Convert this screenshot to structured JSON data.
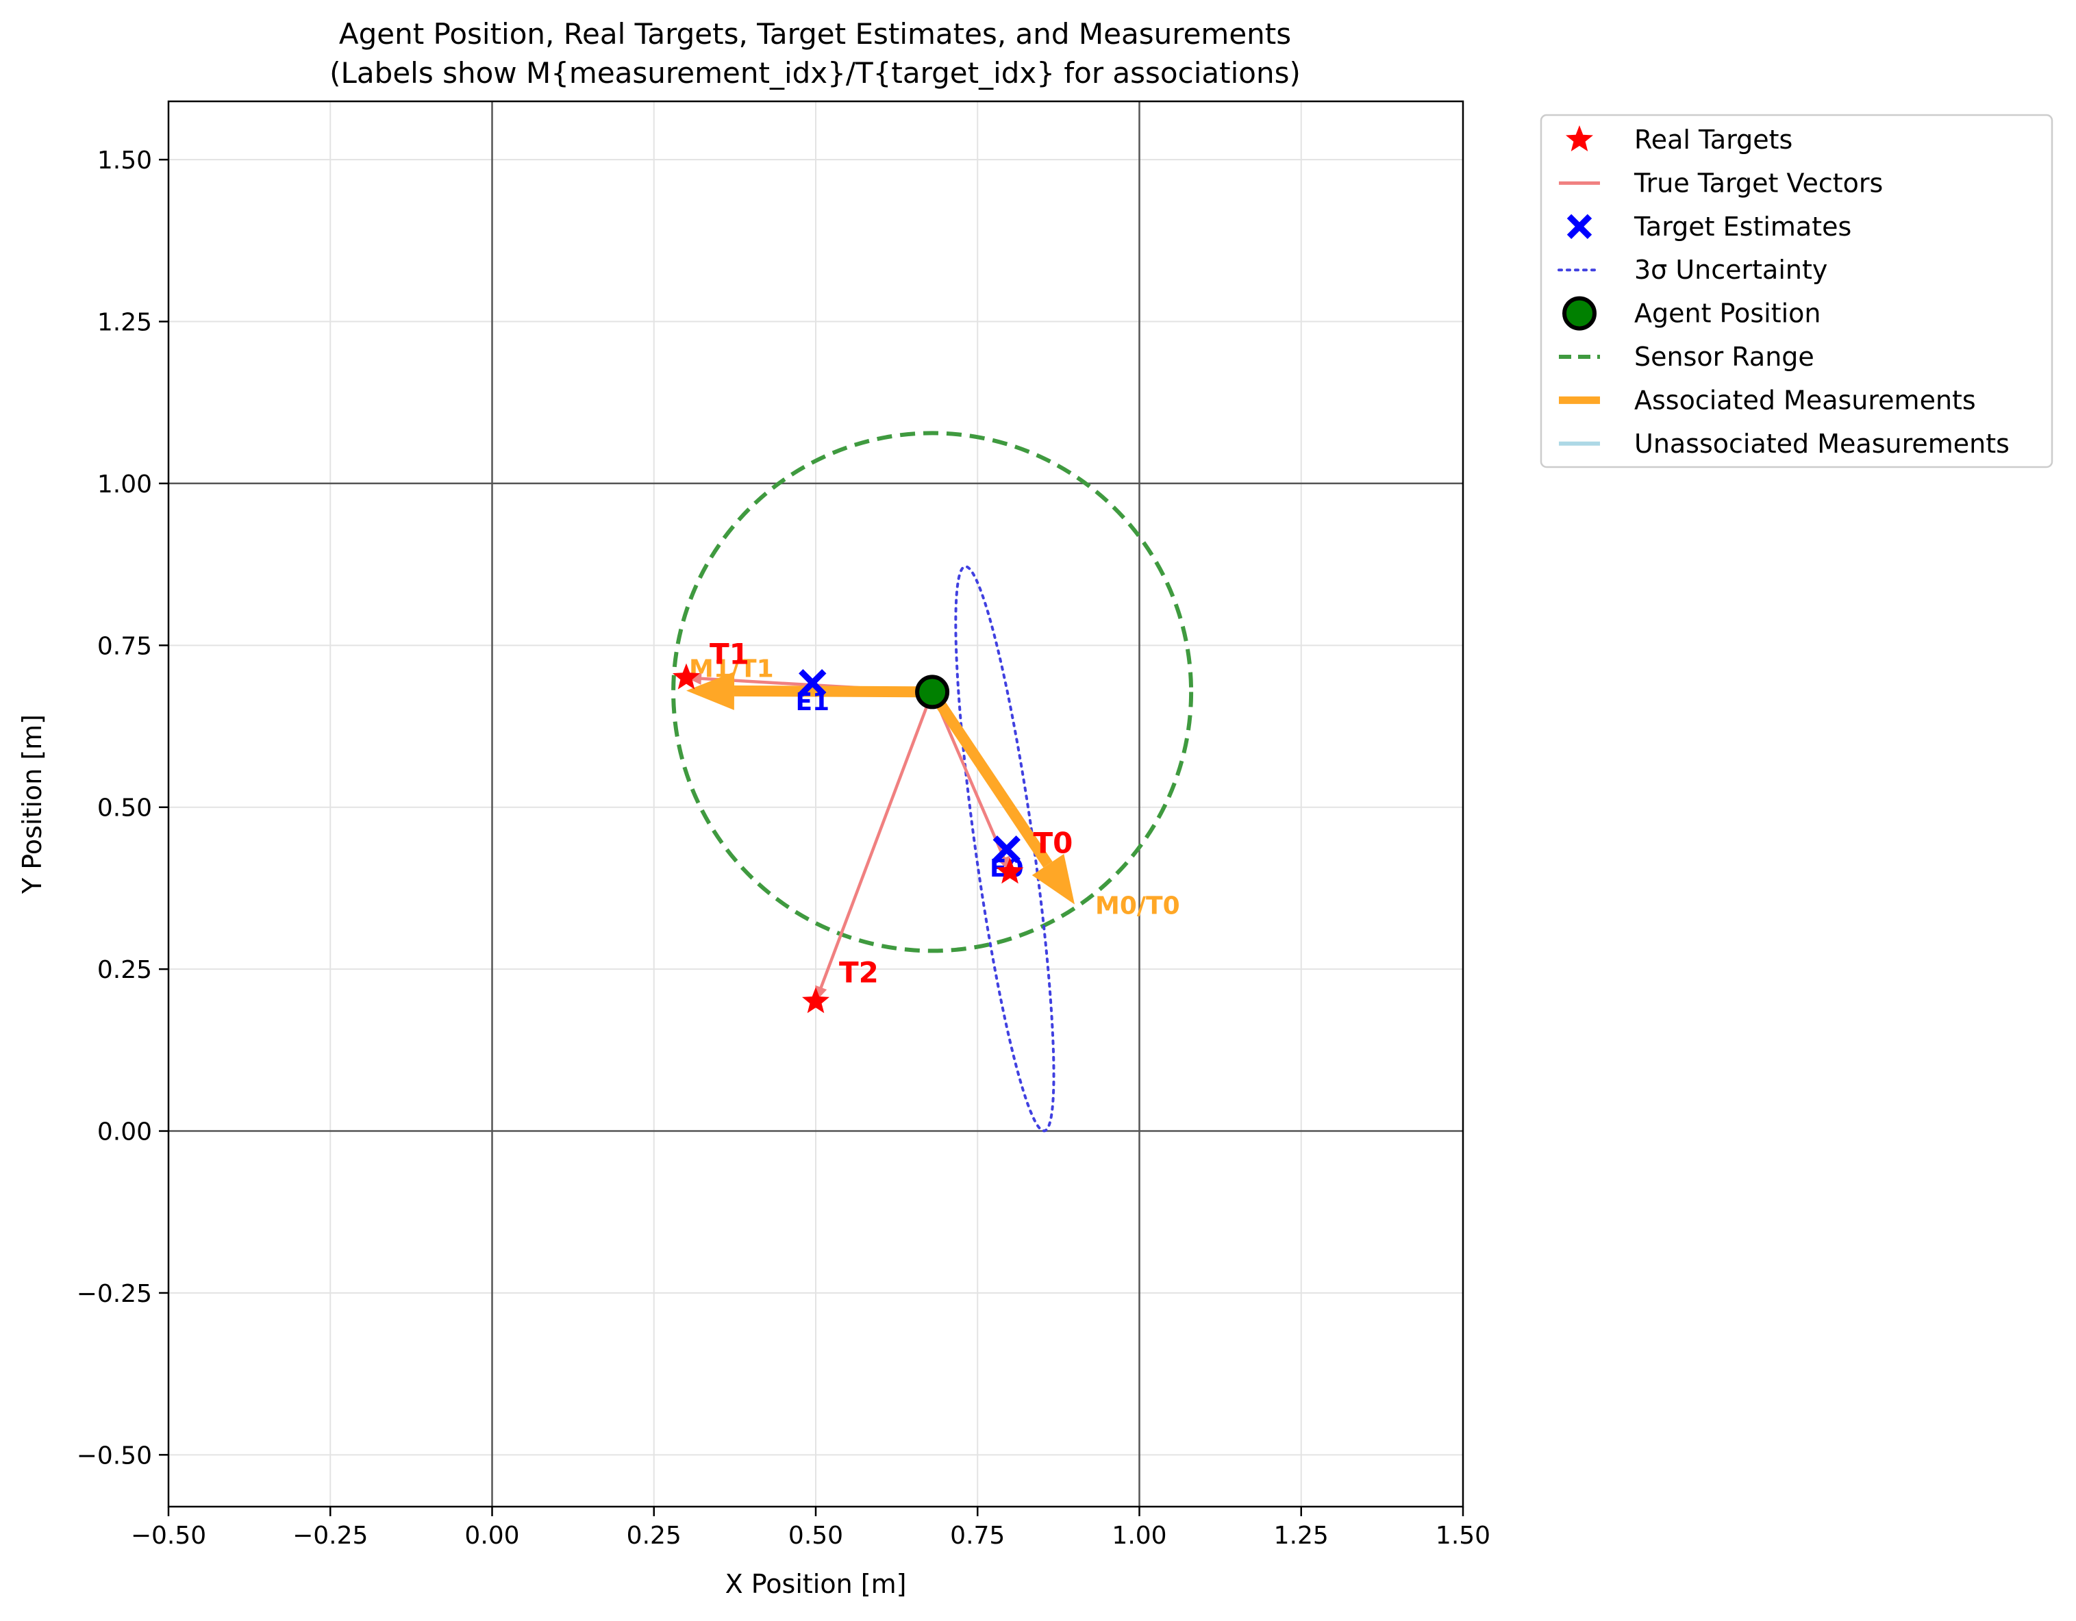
{
  "chart_data": {
    "type": "scatter",
    "title": "Agent Position, Real Targets, Target Estimates, and Measurements",
    "subtitle": "(Labels show M{measurement_idx}/T{target_idx} for associations)",
    "xlabel": "X Position [m]",
    "ylabel": "Y Position [m]",
    "xlim": [
      -0.5,
      1.5
    ],
    "ylim": [
      -0.58,
      1.59
    ],
    "xticks": [
      -0.5,
      -0.25,
      0.0,
      0.25,
      0.5,
      0.75,
      1.0,
      1.25,
      1.5
    ],
    "xtick_labels": [
      "−0.50",
      "−0.25",
      "0.00",
      "0.25",
      "0.50",
      "0.75",
      "1.00",
      "1.25",
      "1.50"
    ],
    "yticks": [
      -0.5,
      -0.25,
      0.0,
      0.25,
      0.5,
      0.75,
      1.0,
      1.25,
      1.5
    ],
    "ytick_labels": [
      "−0.50",
      "−0.25",
      "0.00",
      "0.25",
      "0.50",
      "0.75",
      "1.00",
      "1.25",
      "1.50"
    ],
    "grid": true,
    "reference_lines": {
      "x": [
        0.0,
        1.0
      ],
      "y": [
        0.0,
        1.0
      ]
    },
    "agent": {
      "x": 0.68,
      "y": 0.678
    },
    "sensor_range": {
      "cx": 0.68,
      "cy": 0.678,
      "r": 0.4
    },
    "real_targets": [
      {
        "label": "T0",
        "x": 0.8,
        "y": 0.4
      },
      {
        "label": "T1",
        "x": 0.3,
        "y": 0.7
      },
      {
        "label": "T2",
        "x": 0.5,
        "y": 0.2
      }
    ],
    "target_estimates": [
      {
        "label": "E0",
        "x": 0.795,
        "y": 0.435
      },
      {
        "label": "E1",
        "x": 0.495,
        "y": 0.692
      }
    ],
    "uncertainty_ellipse": {
      "cx": 0.792,
      "cy": 0.436,
      "rx": 0.045,
      "ry": 0.44,
      "angle_deg": 8
    },
    "associated_measurements": [
      {
        "label": "M0/T0",
        "x": 0.9,
        "y": 0.35
      },
      {
        "label": "M1/T1",
        "x": 0.3,
        "y": 0.68
      }
    ],
    "legend": {
      "position": "outside-upper-right",
      "entries": [
        "Real Targets",
        "True Target Vectors",
        "Target Estimates",
        "3σ Uncertainty",
        "Agent Position",
        "Sensor Range",
        "Associated Measurements",
        "Unassociated Measurements"
      ]
    },
    "colors": {
      "real_target": "#ff0000",
      "true_vector": "#f08080",
      "estimate": "#0000ff",
      "uncertainty": "#4040e0",
      "agent_fill": "#008000",
      "sensor_range": "#3f9a3f",
      "associated": "#ffa726",
      "unassociated": "#add8e6"
    }
  }
}
